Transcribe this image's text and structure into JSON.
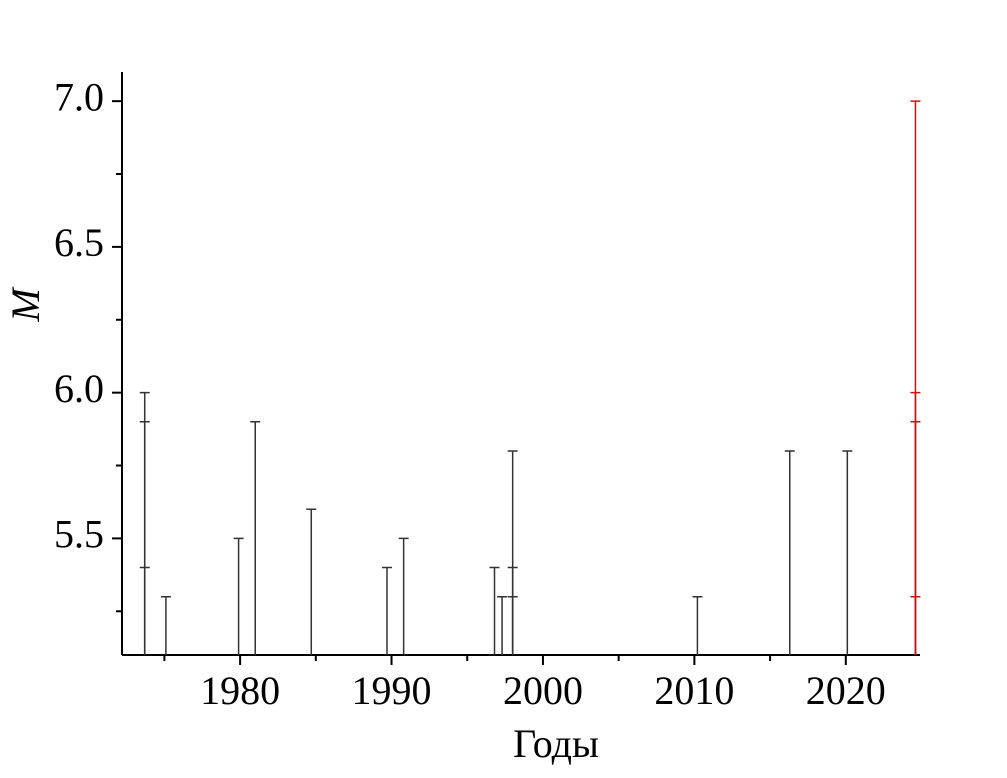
{
  "chart_data": {
    "type": "stem",
    "xlabel": "Годы",
    "ylabel": "M",
    "xlim": [
      1972.2,
      2024.9
    ],
    "ylim": [
      5.1,
      7.1
    ],
    "xticks": [
      1980,
      1990,
      2000,
      2010,
      2020
    ],
    "xminorticks": [
      1975,
      1985,
      1995,
      2005,
      2015
    ],
    "yticks": [
      {
        "value": 5.5,
        "label": "5.5"
      },
      {
        "value": 6,
        "label": "6.0"
      },
      {
        "value": 6.5,
        "label": "6.5"
      },
      {
        "value": 7,
        "label": "7.0"
      }
    ],
    "yminorticks": [
      5.25,
      5.75,
      6.25,
      6.75
    ],
    "series": [
      {
        "color": "#333333",
        "x": [
          1973.7,
          1973.7,
          1973.7,
          1975.1,
          1979.9,
          1981.0,
          1984.7,
          1989.7,
          1990.8,
          1996.8,
          1997.3,
          1998.0,
          1998.0,
          1998.0,
          2010.2,
          2016.3,
          2020.1
        ],
        "values": [
          6.0,
          5.9,
          5.4,
          5.3,
          5.5,
          5.9,
          5.6,
          5.4,
          5.5,
          5.4,
          5.3,
          5.8,
          5.4,
          5.3,
          5.3,
          5.8,
          5.8
        ]
      },
      {
        "color": "#cc1111",
        "x": [
          2024.6,
          2024.6,
          2024.6,
          2024.6
        ],
        "values": [
          7.0,
          6.0,
          5.9,
          5.3
        ]
      }
    ]
  }
}
